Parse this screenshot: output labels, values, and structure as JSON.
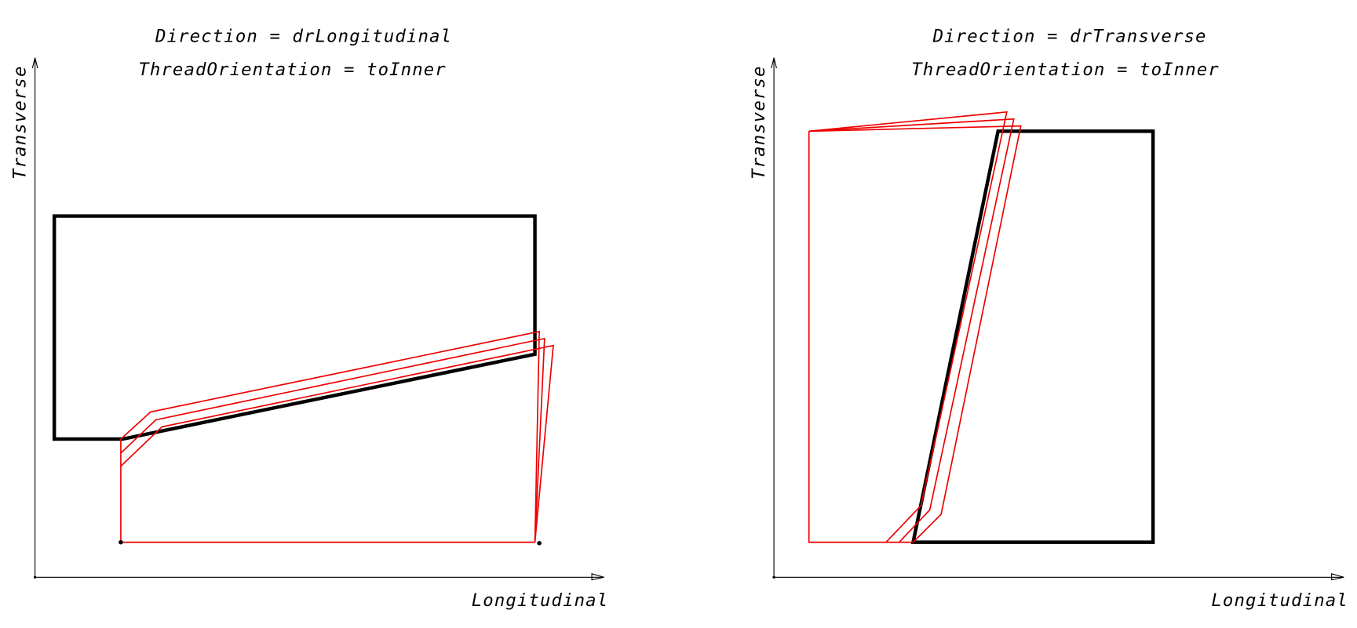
{
  "panels": [
    {
      "title_lines": [
        "Direction = drLongitudinal",
        "ThreadOrientation = toInner"
      ],
      "y_axis_label": "Transverse",
      "x_axis_label": "Longitudinal"
    },
    {
      "title_lines": [
        "Direction = drTransverse",
        "ThreadOrientation = toInner"
      ],
      "y_axis_label": "Transverse",
      "x_axis_label": "Longitudinal"
    }
  ]
}
